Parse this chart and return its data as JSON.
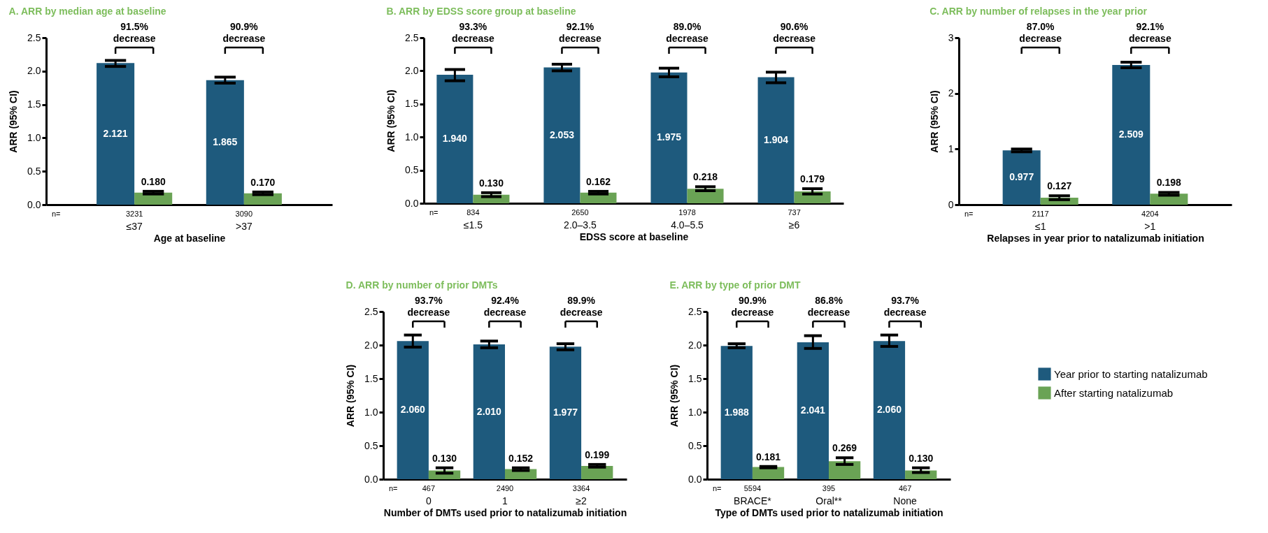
{
  "chart_data": [
    {
      "type": "bar",
      "title": "A. ARR by median age at baseline",
      "xlabel": "Age at baseline",
      "ylabel": "ARR (95% CI)",
      "categories": [
        "≤37",
        ">37"
      ],
      "ylim": [
        0,
        2.5
      ],
      "yticks": [
        {
          "value": 0,
          "label": "0.0"
        },
        0.5,
        {
          "value": 1,
          "label": "1.0"
        },
        1.5,
        {
          "value": 2,
          "label": "2.0"
        },
        2.5
      ],
      "series": [
        {
          "color": "#1e5a7d",
          "values": [
            2.121,
            1.865
          ],
          "value_labels": [
            "2.121",
            "1.865"
          ],
          "errors": [
            [
              2.07,
              2.16
            ],
            [
              1.82,
              1.91
            ]
          ]
        },
        {
          "color": "#6aa355",
          "values": [
            0.18,
            0.17
          ],
          "value_labels": [
            "0.180",
            "0.170"
          ],
          "errors": [
            [
              0.16,
              0.2
            ],
            [
              0.15,
              0.19
            ]
          ]
        }
      ],
      "annotations": [
        "91.5% decrease",
        "90.9% decrease",
        "n=",
        "3231",
        "3090"
      ]
    },
    {
      "type": "bar",
      "title": "B. ARR by EDSS score group at baseline",
      "xlabel": "EDSS score at baseline",
      "ylabel": "ARR (95% CI)",
      "categories": [
        "≤1.5",
        "2.0–3.5",
        "4.0–5.5",
        "≥6"
      ],
      "ylim": [
        0,
        2.5
      ],
      "yticks": [
        {
          "value": 0,
          "label": "0.0"
        },
        0.5,
        {
          "value": 1,
          "label": "1.0"
        },
        1.5,
        {
          "value": 2,
          "label": "2.0"
        },
        2.5
      ],
      "series": [
        {
          "color": "#1e5a7d",
          "values": [
            1.94,
            2.053,
            1.975,
            1.904
          ],
          "value_labels": [
            "1.940",
            "2.053",
            "1.975",
            "1.904"
          ],
          "errors": [
            [
              1.85,
              2.02
            ],
            [
              2.0,
              2.1
            ],
            [
              1.91,
              2.04
            ],
            [
              1.82,
              1.98
            ]
          ]
        },
        {
          "color": "#6aa355",
          "values": [
            0.13,
            0.162,
            0.218,
            0.179
          ],
          "value_labels": [
            "0.130",
            "0.162",
            "0.218",
            "0.179"
          ],
          "errors": [
            [
              0.1,
              0.16
            ],
            [
              0.14,
              0.18
            ],
            [
              0.19,
              0.25
            ],
            [
              0.14,
              0.22
            ]
          ]
        }
      ],
      "annotations": [
        "93.3% decrease",
        "92.1% decrease",
        "89.0% decrease",
        "90.6% decrease",
        "n=",
        "834",
        "2650",
        "1978",
        "737"
      ]
    },
    {
      "type": "bar",
      "title": "C. ARR by number of relapses in the year prior",
      "xlabel": "Relapses in year prior to natalizumab initiation",
      "ylabel": "ARR (95% CI)",
      "categories": [
        "≤1",
        ">1"
      ],
      "ylim": [
        0,
        3
      ],
      "yticks": [
        0,
        1,
        2,
        3
      ],
      "series": [
        {
          "color": "#1e5a7d",
          "values": [
            0.977,
            2.509
          ],
          "value_labels": [
            "0.977",
            "2.509"
          ],
          "errors": [
            [
              0.95,
              1.0
            ],
            [
              2.46,
              2.56
            ]
          ]
        },
        {
          "color": "#6aa355",
          "values": [
            0.127,
            0.198
          ],
          "value_labels": [
            "0.127",
            "0.198"
          ],
          "errors": [
            [
              0.09,
              0.16
            ],
            [
              0.17,
              0.22
            ]
          ]
        }
      ],
      "annotations": [
        "87.0% decrease",
        "92.1% decrease",
        "n=",
        "2117",
        "4204"
      ]
    },
    {
      "type": "bar",
      "title": "D. ARR by number of prior DMTs",
      "xlabel": "Number of DMTs used prior to natalizumab initiation",
      "ylabel": "ARR (95% CI)",
      "categories": [
        "0",
        "1",
        "≥2"
      ],
      "ylim": [
        0,
        2.5
      ],
      "yticks": [
        {
          "value": 0,
          "label": "0.0"
        },
        0.5,
        {
          "value": 1,
          "label": "1.0"
        },
        1.5,
        {
          "value": 2,
          "label": "2.0"
        },
        2.5
      ],
      "series": [
        {
          "color": "#1e5a7d",
          "values": [
            2.06,
            2.01,
            1.977
          ],
          "value_labels": [
            "2.060",
            "2.010",
            "1.977"
          ],
          "errors": [
            [
              1.97,
              2.15
            ],
            [
              1.96,
              2.06
            ],
            [
              1.93,
              2.02
            ]
          ]
        },
        {
          "color": "#6aa355",
          "values": [
            0.13,
            0.152,
            0.199
          ],
          "value_labels": [
            "0.130",
            "0.152",
            "0.199"
          ],
          "errors": [
            [
              0.09,
              0.17
            ],
            [
              0.13,
              0.17
            ],
            [
              0.18,
              0.22
            ]
          ]
        }
      ],
      "annotations": [
        "93.7% decrease",
        "92.4% decrease",
        "89.9% decrease",
        "n=",
        "467",
        "2490",
        "3364"
      ]
    },
    {
      "type": "bar",
      "title": "E. ARR by type of prior DMT",
      "xlabel": "Type of DMTs used prior to natalizumab initiation",
      "ylabel": "ARR (95% CI)",
      "categories": [
        "BRACE*",
        "Oral**",
        "None"
      ],
      "ylim": [
        0,
        2.5
      ],
      "yticks": [
        {
          "value": 0,
          "label": "0.0"
        },
        0.5,
        {
          "value": 1,
          "label": "1.0"
        },
        1.5,
        {
          "value": 2,
          "label": "2.0"
        },
        2.5
      ],
      "legend": "right",
      "series": [
        {
          "name": "Year prior to starting natalizumab",
          "color": "#1e5a7d",
          "values": [
            1.988,
            2.041,
            2.06
          ],
          "value_labels": [
            "1.988",
            "2.041",
            "2.060"
          ],
          "errors": [
            [
              1.96,
              2.02
            ],
            [
              1.95,
              2.14
            ],
            [
              1.98,
              2.15
            ]
          ]
        },
        {
          "name": "After starting natalizumab",
          "color": "#6aa355",
          "values": [
            0.181,
            0.269,
            0.13
          ],
          "value_labels": [
            "0.181",
            "0.269",
            "0.130"
          ],
          "errors": [
            [
              0.17,
              0.19
            ],
            [
              0.22,
              0.32
            ],
            [
              0.1,
              0.17
            ]
          ]
        }
      ],
      "annotations": [
        "90.9% decrease",
        "86.8% decrease",
        "93.7% decrease",
        "n=",
        "5594",
        "395",
        "467"
      ]
    }
  ]
}
